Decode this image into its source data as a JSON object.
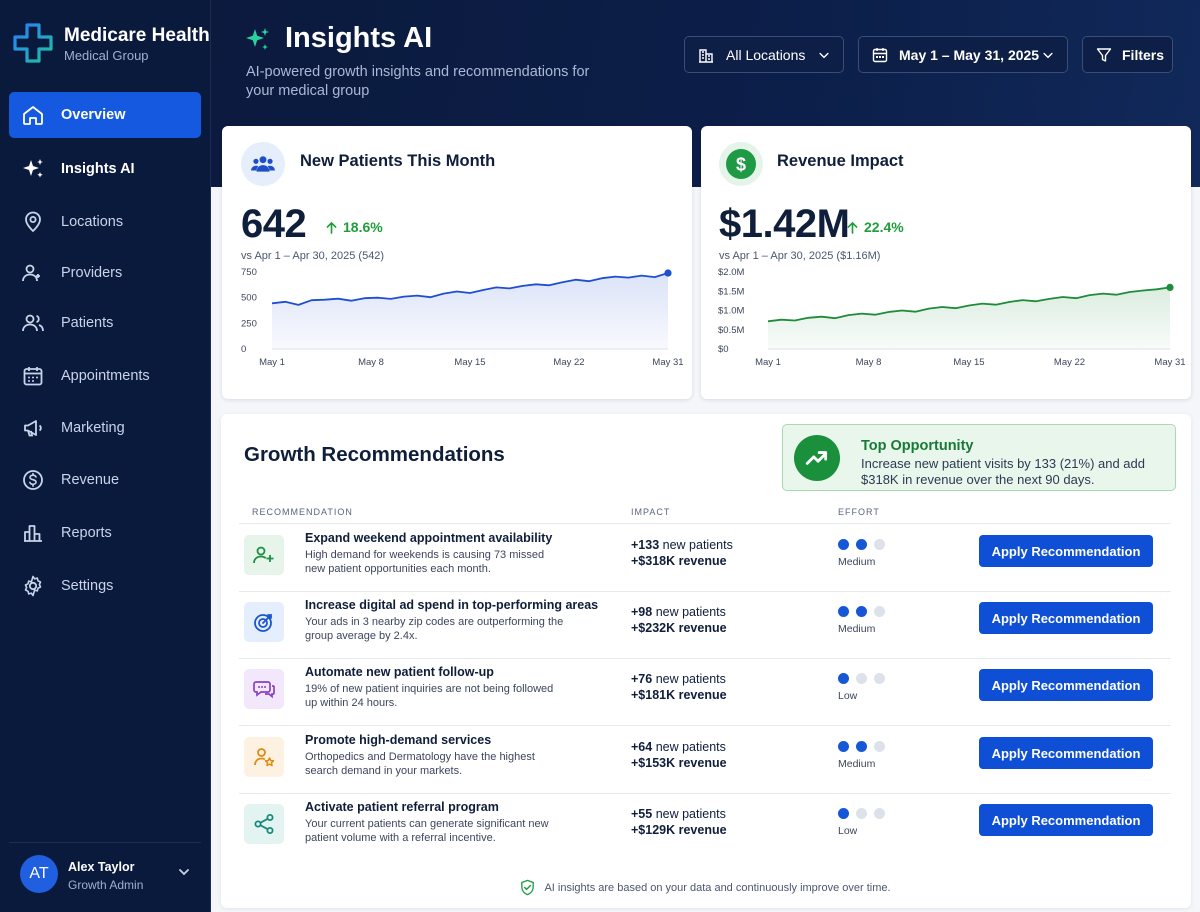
{
  "brand": {
    "name": "Medicare Health",
    "subtitle": "Medical Group"
  },
  "nav": [
    {
      "label": "Overview",
      "icon": "home-icon",
      "state": "active"
    },
    {
      "label": "Insights AI",
      "icon": "sparkle-icon",
      "state": "bold"
    },
    {
      "label": "Locations",
      "icon": "location-pin-icon",
      "state": ""
    },
    {
      "label": "Providers",
      "icon": "providers-icon",
      "state": ""
    },
    {
      "label": "Patients",
      "icon": "patients-icon",
      "state": ""
    },
    {
      "label": "Appointments",
      "icon": "calendar-icon",
      "state": ""
    },
    {
      "label": "Marketing",
      "icon": "megaphone-icon",
      "state": ""
    },
    {
      "label": "Revenue",
      "icon": "dollar-icon",
      "state": ""
    },
    {
      "label": "Reports",
      "icon": "bar-chart-icon",
      "state": ""
    },
    {
      "label": "Settings",
      "icon": "gear-icon",
      "state": ""
    }
  ],
  "user": {
    "initials": "AT",
    "name": "Alex Taylor",
    "role": "Growth Admin"
  },
  "header": {
    "title": "Insights AI",
    "subtitle": "AI-powered growth insights and recommendations for your medical group",
    "locations_label": "All Locations",
    "date_label": "May 1 – May 31, 2025",
    "filters_label": "Filters"
  },
  "kpi_patients": {
    "title": "New Patients This Month",
    "value": "642",
    "delta": "18.6%",
    "comparison": "vs Apr 1 – Apr 30, 2025 (542)"
  },
  "kpi_revenue": {
    "title": "Revenue Impact",
    "value": "$1.42M",
    "delta": "22.4%",
    "comparison": "vs Apr 1 – Apr 30, 2025 ($1.16M)"
  },
  "chart_data": [
    {
      "type": "area",
      "y_ticks": [
        "750",
        "500",
        "250",
        "0"
      ],
      "ylim": [
        0,
        750
      ],
      "x_ticks": [
        "May 1",
        "May 8",
        "May 15",
        "May 22",
        "May 31"
      ],
      "x": [
        1,
        2,
        3,
        4,
        5,
        6,
        7,
        8,
        9,
        10,
        11,
        12,
        13,
        14,
        15,
        16,
        17,
        18,
        19,
        20,
        21,
        22,
        23,
        24,
        25,
        26,
        27,
        28,
        29,
        30,
        31
      ],
      "values": [
        445,
        460,
        430,
        475,
        480,
        490,
        470,
        495,
        500,
        488,
        510,
        520,
        505,
        540,
        560,
        545,
        575,
        600,
        590,
        615,
        630,
        620,
        650,
        675,
        660,
        690,
        705,
        695,
        715,
        700,
        740
      ],
      "color": "#1f4fd1"
    },
    {
      "type": "area",
      "y_ticks": [
        "$2.0M",
        "$1.5M",
        "$1.0M",
        "$0.5M",
        "$0"
      ],
      "ylim": [
        0,
        2.0
      ],
      "x_ticks": [
        "May 1",
        "May 8",
        "May 15",
        "May 22",
        "May 31"
      ],
      "x": [
        1,
        2,
        3,
        4,
        5,
        6,
        7,
        8,
        9,
        10,
        11,
        12,
        13,
        14,
        15,
        16,
        17,
        18,
        19,
        20,
        21,
        22,
        23,
        24,
        25,
        26,
        27,
        28,
        29,
        30,
        31
      ],
      "values": [
        0.72,
        0.76,
        0.74,
        0.81,
        0.84,
        0.8,
        0.88,
        0.92,
        0.89,
        0.96,
        1.0,
        0.97,
        1.05,
        1.09,
        1.06,
        1.13,
        1.18,
        1.15,
        1.22,
        1.27,
        1.24,
        1.3,
        1.35,
        1.32,
        1.4,
        1.44,
        1.41,
        1.48,
        1.52,
        1.55,
        1.6
      ],
      "color": "#1e8c3a"
    }
  ],
  "recommendations": {
    "title": "Growth Recommendations",
    "columns": {
      "rec": "RECOMMENDATION",
      "impact": "IMPACT",
      "effort": "EFFORT"
    },
    "top_opportunity": {
      "title": "Top Opportunity",
      "text": "Increase new patient visits by 133 (21%) and add $318K in revenue over the next 90 days."
    },
    "rows": [
      {
        "icon": "add-user-icon",
        "name": "Expand weekend appointment availability",
        "desc": "High demand for weekends is causing 73 missed new patient opportunities each month.",
        "patients": "+133",
        "patients_label": "new patients",
        "revenue": "+$318K revenue",
        "effort": "Medium",
        "effort_level": 2,
        "action": "Apply Recommendation",
        "tint": "#e6f4ea",
        "color": "#1f8f45"
      },
      {
        "icon": "target-icon",
        "name": "Increase digital ad spend in top-performing areas",
        "desc": "Your ads in 3 nearby zip codes are outperforming the group average by 2.4x.",
        "patients": "+98",
        "patients_label": "new patients",
        "revenue": "+$232K revenue",
        "effort": "Medium",
        "effort_level": 2,
        "action": "Apply Recommendation",
        "tint": "#e5eefc",
        "color": "#1a55d2"
      },
      {
        "icon": "chat-icon",
        "name": "Automate new patient follow-up",
        "desc": "19% of new patient inquiries are not being followed up within 24 hours.",
        "patients": "+76",
        "patients_label": "new patients",
        "revenue": "+$181K revenue",
        "effort": "Low",
        "effort_level": 1,
        "action": "Apply Recommendation",
        "tint": "#f3e8fb",
        "color": "#8a3fc7"
      },
      {
        "icon": "user-star-icon",
        "name": "Promote high-demand services",
        "desc": "Orthopedics and Dermatology have the highest search demand in your markets.",
        "patients": "+64",
        "patients_label": "new patients",
        "revenue": "+$153K revenue",
        "effort": "Medium",
        "effort_level": 2,
        "action": "Apply Recommendation",
        "tint": "#fdf2e1",
        "color": "#e08a12"
      },
      {
        "icon": "share-icon",
        "name": "Activate patient referral program",
        "desc": "Your current patients can generate significant new patient volume with a referral incentive.",
        "patients": "+55",
        "patients_label": "new patients",
        "revenue": "+$129K revenue",
        "effort": "Low",
        "effort_level": 1,
        "action": "Apply Recommendation",
        "tint": "#e3f3f1",
        "color": "#188a7c"
      }
    ],
    "footer": "AI insights are based on your data and continuously improve over time."
  }
}
